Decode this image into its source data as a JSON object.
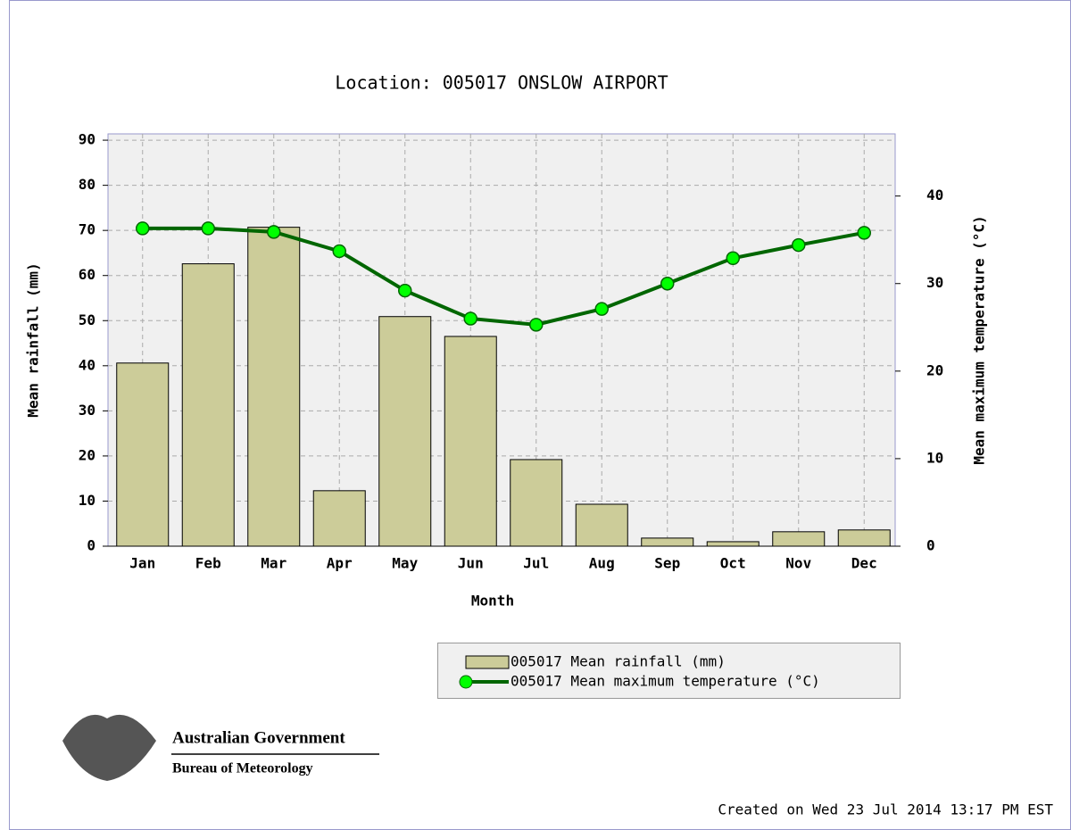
{
  "chart_data": {
    "type": "bar_line",
    "title": "Location: 005017 ONSLOW AIRPORT",
    "x_label": "Month",
    "y_label": "Mean rainfall (mm)",
    "y2_label": "Mean maximum temperature (°C)",
    "categories": [
      "Jan",
      "Feb",
      "Mar",
      "Apr",
      "May",
      "Jun",
      "Jul",
      "Aug",
      "Sep",
      "Oct",
      "Nov",
      "Dec"
    ],
    "series": [
      {
        "name": "005017 Mean rainfall (mm)",
        "type": "bar",
        "color": "#cccc99",
        "axis": "y",
        "values": [
          40.6,
          62.6,
          70.7,
          12.3,
          50.9,
          46.5,
          19.2,
          9.3,
          1.8,
          1.0,
          3.2,
          3.6
        ]
      },
      {
        "name": "005017 Mean maximum temperature (°C)",
        "type": "line",
        "color": "#006600",
        "marker_color": "#00ff00",
        "axis": "y2",
        "values": [
          36.3,
          36.3,
          35.9,
          33.7,
          29.2,
          26.0,
          25.3,
          27.1,
          30.0,
          32.9,
          34.4,
          35.8
        ]
      }
    ],
    "ylim": [
      0,
      91.4
    ],
    "yticks": [
      0,
      10,
      20,
      30,
      40,
      50,
      60,
      70,
      80,
      90
    ],
    "y2lim": [
      0,
      47.1
    ],
    "y2ticks": [
      0,
      10,
      20,
      30,
      40
    ],
    "grid": true,
    "legend": "bottom-right"
  },
  "logo": {
    "line1": "Australian Government",
    "line2": "Bureau of Meteorology"
  },
  "footer": "Created on Wed 23 Jul 2014 13:17 PM EST"
}
